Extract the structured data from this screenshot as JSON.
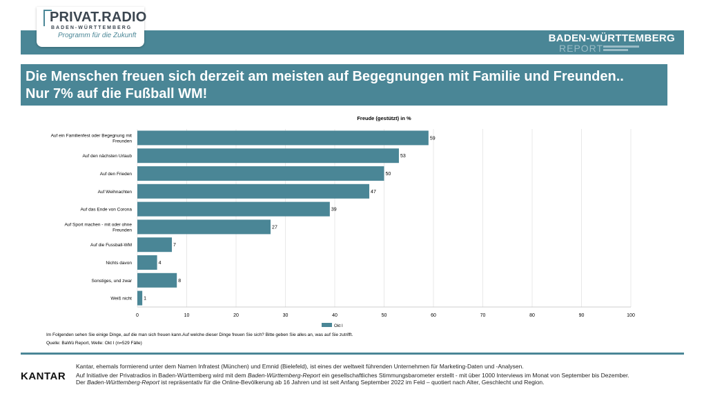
{
  "brand": {
    "logo_main": "PRIVAT.RADIO",
    "logo_sub": "BADEN-WÜRTTEMBERG",
    "logo_tagline": "Programm für die Zukunft",
    "report_title": "BADEN-WÜRTTEMBERG",
    "report_sub": "REPORT"
  },
  "headline": {
    "line1": "Die Menschen freuen sich derzeit am meisten auf Begegnungen mit Familie und Freunden..",
    "line2": "Nur 7% auf die Fußball WM!"
  },
  "colors": {
    "accent": "#4a8696",
    "bar": "#4a8696"
  },
  "chart_data": {
    "type": "bar",
    "orientation": "horizontal",
    "title": "Freude (gestützt) in %",
    "categories": [
      [
        "Auf ein Familienfest oder Begegnung mit",
        "Freunden"
      ],
      [
        "Auf den nächsten Urlaub"
      ],
      [
        "Auf den Frieden"
      ],
      [
        "Auf Weihnachten"
      ],
      [
        "Auf das Ende von Corona"
      ],
      [
        "Auf Sport machen - mit oder ohne",
        "Freunden"
      ],
      [
        "Auf die Fussball-WM"
      ],
      [
        "Nichts davon"
      ],
      [
        "Sonstiges, und zwar"
      ],
      [
        "Weiß nicht"
      ]
    ],
    "series": [
      {
        "name": "Okt I",
        "values": [
          59,
          53,
          50,
          47,
          39,
          27,
          7,
          4,
          8,
          1
        ]
      }
    ],
    "xlim": [
      0,
      100
    ],
    "xticks": [
      0,
      10,
      20,
      30,
      40,
      50,
      60,
      70,
      80,
      90,
      100
    ],
    "grid": true,
    "legend_position": "bottom-center"
  },
  "notes": {
    "question": "Im Folgenden sehen Sie einige Dinge, auf die man sich freuen kann.Auf welche dieser Dinge freuen Sie sich? Bitte geben Sie alles an, was auf Sie zutrifft.",
    "source": "Quelle: BaWü Report, Welle: Okt I (n=529 Fälle)"
  },
  "footer": {
    "kantar": "KANTAR",
    "line1": "Kantar, ehemals formierend unter dem Namen Infratest (München) und Emnid (Bielefeld), ist eines der weltweit führenden Unternehmen für Marketing-Daten und -Analysen.",
    "line2": "Auf Initiative der Privatradios in Baden-Württemberg wird mit dem Baden-Württemberg-Report ein gesellschaftliches Stimmungsbarometer erstellt - mit über 1000 Interviews im Monat von September bis Dezember.",
    "line3": "Der Baden-Württemberg-Report ist repräsentativ für die Online-Bevölkerung ab 16 Jahren und ist seit Anfang September 2022 im Feld – quotiert nach Alter, Geschlecht und Region."
  }
}
